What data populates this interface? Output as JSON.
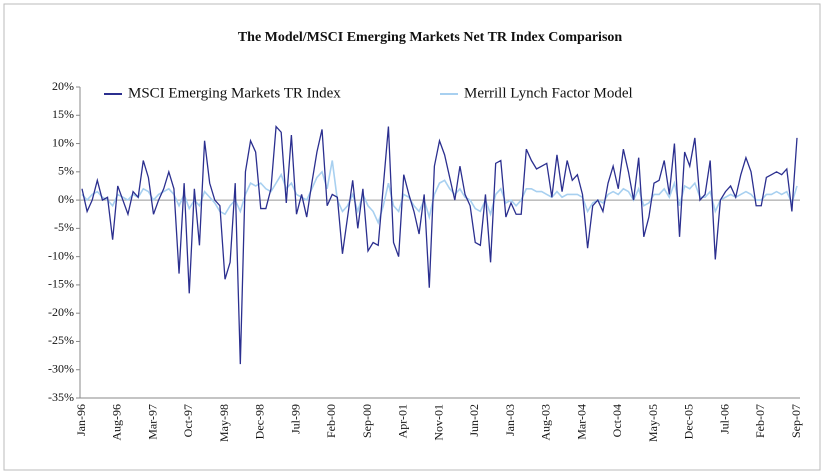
{
  "chart_data": {
    "type": "line",
    "title": "The Model/MSCI Emerging Markets Net TR Index Comparison",
    "categories": [
      "Jan-96",
      null,
      null,
      null,
      null,
      null,
      null,
      "Aug-96",
      null,
      null,
      null,
      null,
      null,
      null,
      "Mar-97",
      null,
      null,
      null,
      null,
      null,
      null,
      "Oct-97",
      null,
      null,
      null,
      null,
      null,
      null,
      "May-98",
      null,
      null,
      null,
      null,
      null,
      null,
      "Dec-98",
      null,
      null,
      null,
      null,
      null,
      null,
      "Jul-99",
      null,
      null,
      null,
      null,
      null,
      null,
      "Feb-00",
      null,
      null,
      null,
      null,
      null,
      null,
      "Sep-00",
      null,
      null,
      null,
      null,
      null,
      null,
      "Apr-01",
      null,
      null,
      null,
      null,
      null,
      null,
      "Nov-01",
      null,
      null,
      null,
      null,
      null,
      null,
      "Jun-02",
      null,
      null,
      null,
      null,
      null,
      null,
      "Jan-03",
      null,
      null,
      null,
      null,
      null,
      null,
      "Aug-03",
      null,
      null,
      null,
      null,
      null,
      null,
      "Mar-04",
      null,
      null,
      null,
      null,
      null,
      null,
      "Oct-04",
      null,
      null,
      null,
      null,
      null,
      null,
      "May-05",
      null,
      null,
      null,
      null,
      null,
      null,
      "Dec-05",
      null,
      null,
      null,
      null,
      null,
      null,
      "Jul-06",
      null,
      null,
      null,
      null,
      null,
      null,
      "Feb-07",
      null,
      null,
      null,
      null,
      null,
      null,
      "Sep-07"
    ],
    "series": [
      {
        "name": "MSCI Emerging Markets TR Index",
        "color": "#2b2f8f",
        "values": [
          2,
          -2,
          0,
          3.5,
          0,
          0.5,
          -7,
          2.5,
          0,
          -2.5,
          1.5,
          0.5,
          7,
          4,
          -2.5,
          0,
          2,
          5,
          2,
          -13,
          3,
          -16.5,
          2,
          -8,
          10.5,
          3,
          0,
          -1,
          -14,
          -11,
          3,
          -29,
          5,
          10.5,
          8.5,
          -1.5,
          -1.5,
          2,
          13,
          12,
          -0.5,
          11.5,
          -2.5,
          1,
          -3,
          3,
          8.5,
          12.5,
          -1,
          1,
          0.5,
          -9.5,
          -3,
          3.5,
          -5,
          2,
          -9,
          -7.5,
          -8,
          2.5,
          13,
          -7.5,
          -10,
          4.5,
          1,
          -2,
          -6,
          1,
          -15.5,
          6,
          10.5,
          8,
          4,
          0,
          6,
          1,
          -1,
          -7.5,
          -8,
          1,
          -11,
          6.5,
          7,
          -3,
          -0.5,
          -2.5,
          -2.5,
          9,
          7,
          5.5,
          6,
          6.5,
          0.5,
          8,
          1.5,
          7,
          3.5,
          4.5,
          1,
          -8.5,
          -1,
          0,
          -2,
          3,
          6,
          2,
          9,
          5,
          0,
          7.5,
          -6.5,
          -3,
          3,
          3.5,
          7,
          1,
          10,
          -6.5,
          8.5,
          6,
          11,
          0,
          1,
          7,
          -10.5,
          0,
          1.5,
          2.5,
          0.5,
          4.5,
          7.5,
          5,
          -1,
          -1,
          4,
          4.5,
          5,
          4.5,
          5.5,
          -2,
          11
        ]
      },
      {
        "name": "Merrill Lynch Factor Model",
        "color": "#a8d0f0",
        "values": [
          1,
          0,
          1,
          1.5,
          0.5,
          0,
          -1,
          1,
          0.5,
          0,
          1,
          0.5,
          2,
          1.5,
          0,
          1,
          1.5,
          2,
          1,
          -1,
          1,
          -1.5,
          0,
          -1,
          1.5,
          0.5,
          -0.5,
          -2,
          -2.5,
          -1,
          0,
          -2,
          1,
          3,
          2.5,
          3,
          2,
          1.5,
          3,
          4.5,
          2,
          3,
          1,
          0.5,
          0,
          2,
          4,
          5,
          2,
          7,
          0,
          -2,
          -1,
          1,
          -2,
          1,
          -1,
          -2,
          -4,
          -1,
          3,
          -1,
          -2,
          1,
          0.5,
          -1,
          -2,
          0,
          -3,
          1,
          3,
          3.5,
          2,
          1,
          2,
          0.5,
          0,
          -1.5,
          -2,
          0,
          -2.5,
          1,
          2,
          -0.5,
          0,
          -1,
          0,
          2,
          2,
          1.5,
          1.5,
          1,
          0.5,
          1.5,
          0.5,
          1,
          1,
          1,
          0.5,
          -2,
          -0.5,
          0,
          -0.5,
          1,
          1.5,
          1,
          2,
          1.5,
          0,
          2,
          -1,
          -0.5,
          1,
          1,
          2,
          0.5,
          3,
          -1,
          2.5,
          2,
          3,
          0.5,
          0.5,
          1.5,
          -2,
          0,
          0.5,
          1,
          0.5,
          1,
          1.5,
          1,
          0,
          0,
          1,
          1,
          1.5,
          1,
          1.5,
          -0.5,
          2.5
        ]
      }
    ],
    "ylim": [
      -35,
      20
    ],
    "yticks": [
      {
        "value": -35,
        "label": "-35%"
      },
      {
        "value": -30,
        "label": "-30%"
      },
      {
        "value": -25,
        "label": "-25%"
      },
      {
        "value": -20,
        "label": "-20%"
      },
      {
        "value": -15,
        "label": "-15%"
      },
      {
        "value": -10,
        "label": "-10%"
      },
      {
        "value": -5,
        "label": "-5%"
      },
      {
        "value": 0,
        "label": "0%"
      },
      {
        "value": 5,
        "label": "5%"
      },
      {
        "value": 10,
        "label": "10%"
      },
      {
        "value": 15,
        "label": "15%"
      },
      {
        "value": 20,
        "label": "20%"
      }
    ],
    "grid": false
  }
}
